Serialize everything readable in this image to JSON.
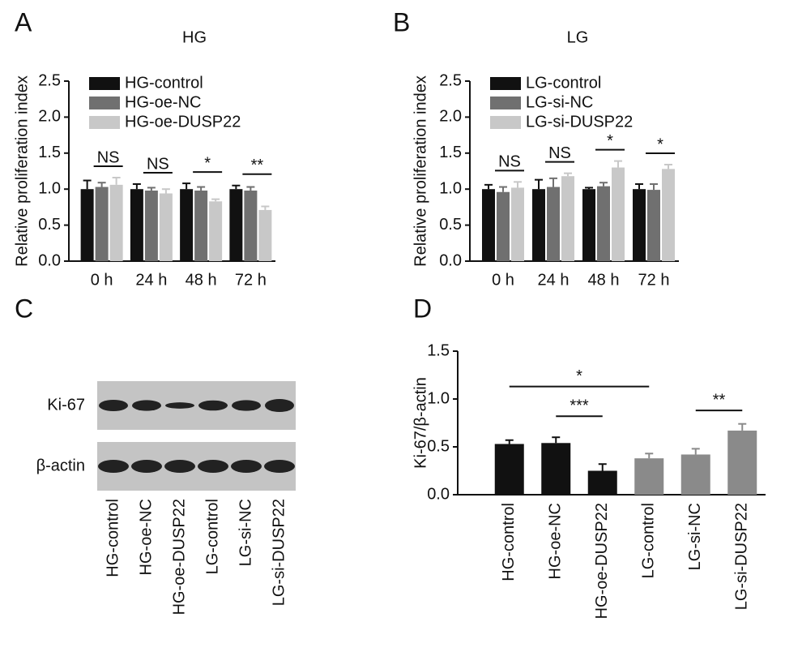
{
  "chart_data": [
    {
      "type": "bar",
      "panel": "A",
      "title": "HG",
      "y_label": "Relative proliferation index",
      "categories": [
        "0 h",
        "24 h",
        "48 h",
        "72 h"
      ],
      "series": [
        {
          "name": "HG-control",
          "color": "#111111",
          "values": [
            1.0,
            1.0,
            1.0,
            1.0
          ],
          "errors": [
            0.12,
            0.07,
            0.08,
            0.05
          ]
        },
        {
          "name": "HG-oe-NC",
          "color": "#707070",
          "values": [
            1.03,
            0.98,
            0.98,
            0.98
          ],
          "errors": [
            0.06,
            0.04,
            0.05,
            0.05
          ]
        },
        {
          "name": "HG-oe-DUSP22",
          "color": "#c8c8c8",
          "values": [
            1.06,
            0.94,
            0.83,
            0.71
          ],
          "errors": [
            0.1,
            0.06,
            0.03,
            0.05
          ]
        }
      ],
      "ylim": [
        0,
        2.5
      ],
      "yticks": [
        {
          "value": 0,
          "label": "0.0"
        },
        {
          "value": 0.5,
          "label": "0.5"
        },
        {
          "value": 1,
          "label": "1.0"
        },
        {
          "value": 1.5,
          "label": "1.5"
        },
        {
          "value": 2,
          "label": "2.0"
        },
        {
          "value": 2.5,
          "label": "2.5"
        }
      ],
      "annotations": [
        "NS",
        "NS",
        "*",
        "**"
      ]
    },
    {
      "type": "bar",
      "panel": "B",
      "title": "LG",
      "y_label": "Relative proliferation index",
      "categories": [
        "0 h",
        "24 h",
        "48 h",
        "72 h"
      ],
      "series": [
        {
          "name": "LG-control",
          "color": "#111111",
          "values": [
            1.0,
            1.0,
            1.0,
            1.0
          ],
          "errors": [
            0.06,
            0.13,
            0.02,
            0.07
          ]
        },
        {
          "name": "LG-si-NC",
          "color": "#707070",
          "values": [
            0.96,
            1.03,
            1.04,
            0.99
          ],
          "errors": [
            0.07,
            0.12,
            0.05,
            0.08
          ]
        },
        {
          "name": "LG-si-DUSP22",
          "color": "#c8c8c8",
          "values": [
            1.02,
            1.18,
            1.3,
            1.28
          ],
          "errors": [
            0.08,
            0.04,
            0.09,
            0.06
          ]
        }
      ],
      "ylim": [
        0,
        2.5
      ],
      "yticks": [
        {
          "value": 0,
          "label": "0.0"
        },
        {
          "value": 0.5,
          "label": "0.5"
        },
        {
          "value": 1,
          "label": "1.0"
        },
        {
          "value": 1.5,
          "label": "1.5"
        },
        {
          "value": 2,
          "label": "2.0"
        },
        {
          "value": 2.5,
          "label": "2.5"
        }
      ],
      "annotations": [
        "NS",
        "NS",
        "*",
        "*"
      ]
    },
    {
      "type": "bar",
      "panel": "D",
      "y_label": "Ki-67/β-actin",
      "categories": [
        "HG-control",
        "HG-oe-NC",
        "HG-oe-DUSP22",
        "LG-control",
        "LG-si-NC",
        "LG-si-DUSP22"
      ],
      "values": [
        0.53,
        0.54,
        0.25,
        0.38,
        0.42,
        0.67
      ],
      "errors": [
        0.04,
        0.06,
        0.07,
        0.05,
        0.06,
        0.07
      ],
      "colors": [
        "#111111",
        "#111111",
        "#111111",
        "#8a8a8a",
        "#8a8a8a",
        "#8a8a8a"
      ],
      "ylim": [
        0,
        1.5
      ],
      "yticks": [
        {
          "value": 0,
          "label": "0.0"
        },
        {
          "value": 0.5,
          "label": "0.5"
        },
        {
          "value": 1,
          "label": "1.0"
        },
        {
          "value": 1.5,
          "label": "1.5"
        }
      ],
      "annotations": [
        "*",
        "***",
        "**"
      ]
    }
  ],
  "blot": {
    "panel": "C",
    "rows": [
      "Ki-67",
      "β-actin"
    ],
    "lanes": [
      "HG-control",
      "HG-oe-NC",
      "HG-oe-DUSP22",
      "LG-control",
      "LG-si-NC",
      "LG-si-DUSP22"
    ]
  }
}
